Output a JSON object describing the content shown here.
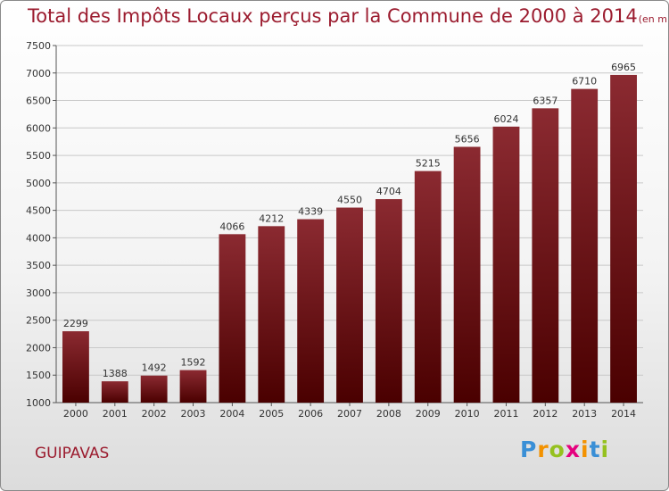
{
  "title": "Total des Impôts Locaux perçus par la Commune de 2000 à 2014",
  "subtitle": "(en milliers d'€)",
  "commune": "GUIPAVAS",
  "brand": {
    "letters": [
      "P",
      "r",
      "o",
      "x",
      "i",
      "t",
      "i"
    ],
    "colors": [
      "#3a8fd6",
      "#f39200",
      "#95c11f",
      "#e5007e",
      "#f39200",
      "#3a8fd6",
      "#95c11f"
    ]
  },
  "colors": {
    "title": "#9b1b2e",
    "bar_top": "#8b2a31",
    "bar_bottom": "#4a0000",
    "grid": "#c8c8c8"
  },
  "chart_data": {
    "type": "bar",
    "categories": [
      "2000",
      "2001",
      "2002",
      "2003",
      "2004",
      "2005",
      "2006",
      "2007",
      "2008",
      "2009",
      "2010",
      "2011",
      "2012",
      "2013",
      "2014"
    ],
    "values": [
      2299,
      1388,
      1492,
      1592,
      4066,
      4212,
      4339,
      4550,
      4704,
      5215,
      5656,
      6024,
      6357,
      6710,
      6965
    ],
    "ylim": [
      1000,
      7500
    ],
    "yticks": [
      "1000",
      "1500",
      "2000",
      "2500",
      "3000",
      "3500",
      "4000",
      "4500",
      "5000",
      "5500",
      "6000",
      "6500",
      "7000",
      "7500"
    ],
    "grid": true,
    "title": "Total des Impôts Locaux perçus par la Commune de 2000 à 2014",
    "xlabel": "",
    "ylabel": ""
  }
}
